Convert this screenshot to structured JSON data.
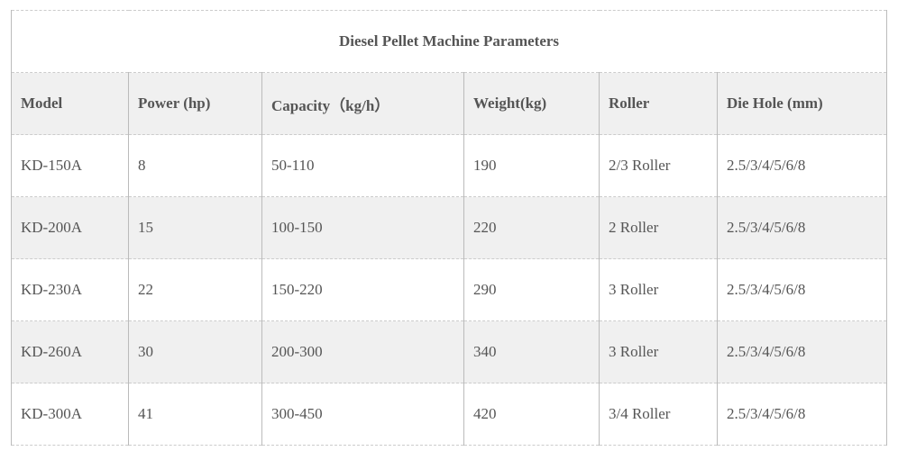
{
  "title": "Diesel Pellet Machine Parameters",
  "headers": [
    "Model",
    "Power (hp)",
    "Capacity（kg/h）",
    "Weight(kg)",
    "Roller",
    "Die Hole (mm)"
  ],
  "rows": [
    [
      "KD-150A",
      "8",
      "50-110",
      "190",
      "2/3 Roller",
      "2.5/3/4/5/6/8"
    ],
    [
      "KD-200A",
      "15",
      "100-150",
      "220",
      "2 Roller",
      "2.5/3/4/5/6/8"
    ],
    [
      "KD-230A",
      "22",
      "150-220",
      "290",
      "3 Roller",
      "2.5/3/4/5/6/8"
    ],
    [
      "KD-260A",
      "30",
      "200-300",
      "340",
      "3 Roller",
      "2.5/3/4/5/6/8"
    ],
    [
      "KD-300A",
      "41",
      "300-450",
      "420",
      "3/4 Roller",
      "2.5/3/4/5/6/8"
    ]
  ]
}
